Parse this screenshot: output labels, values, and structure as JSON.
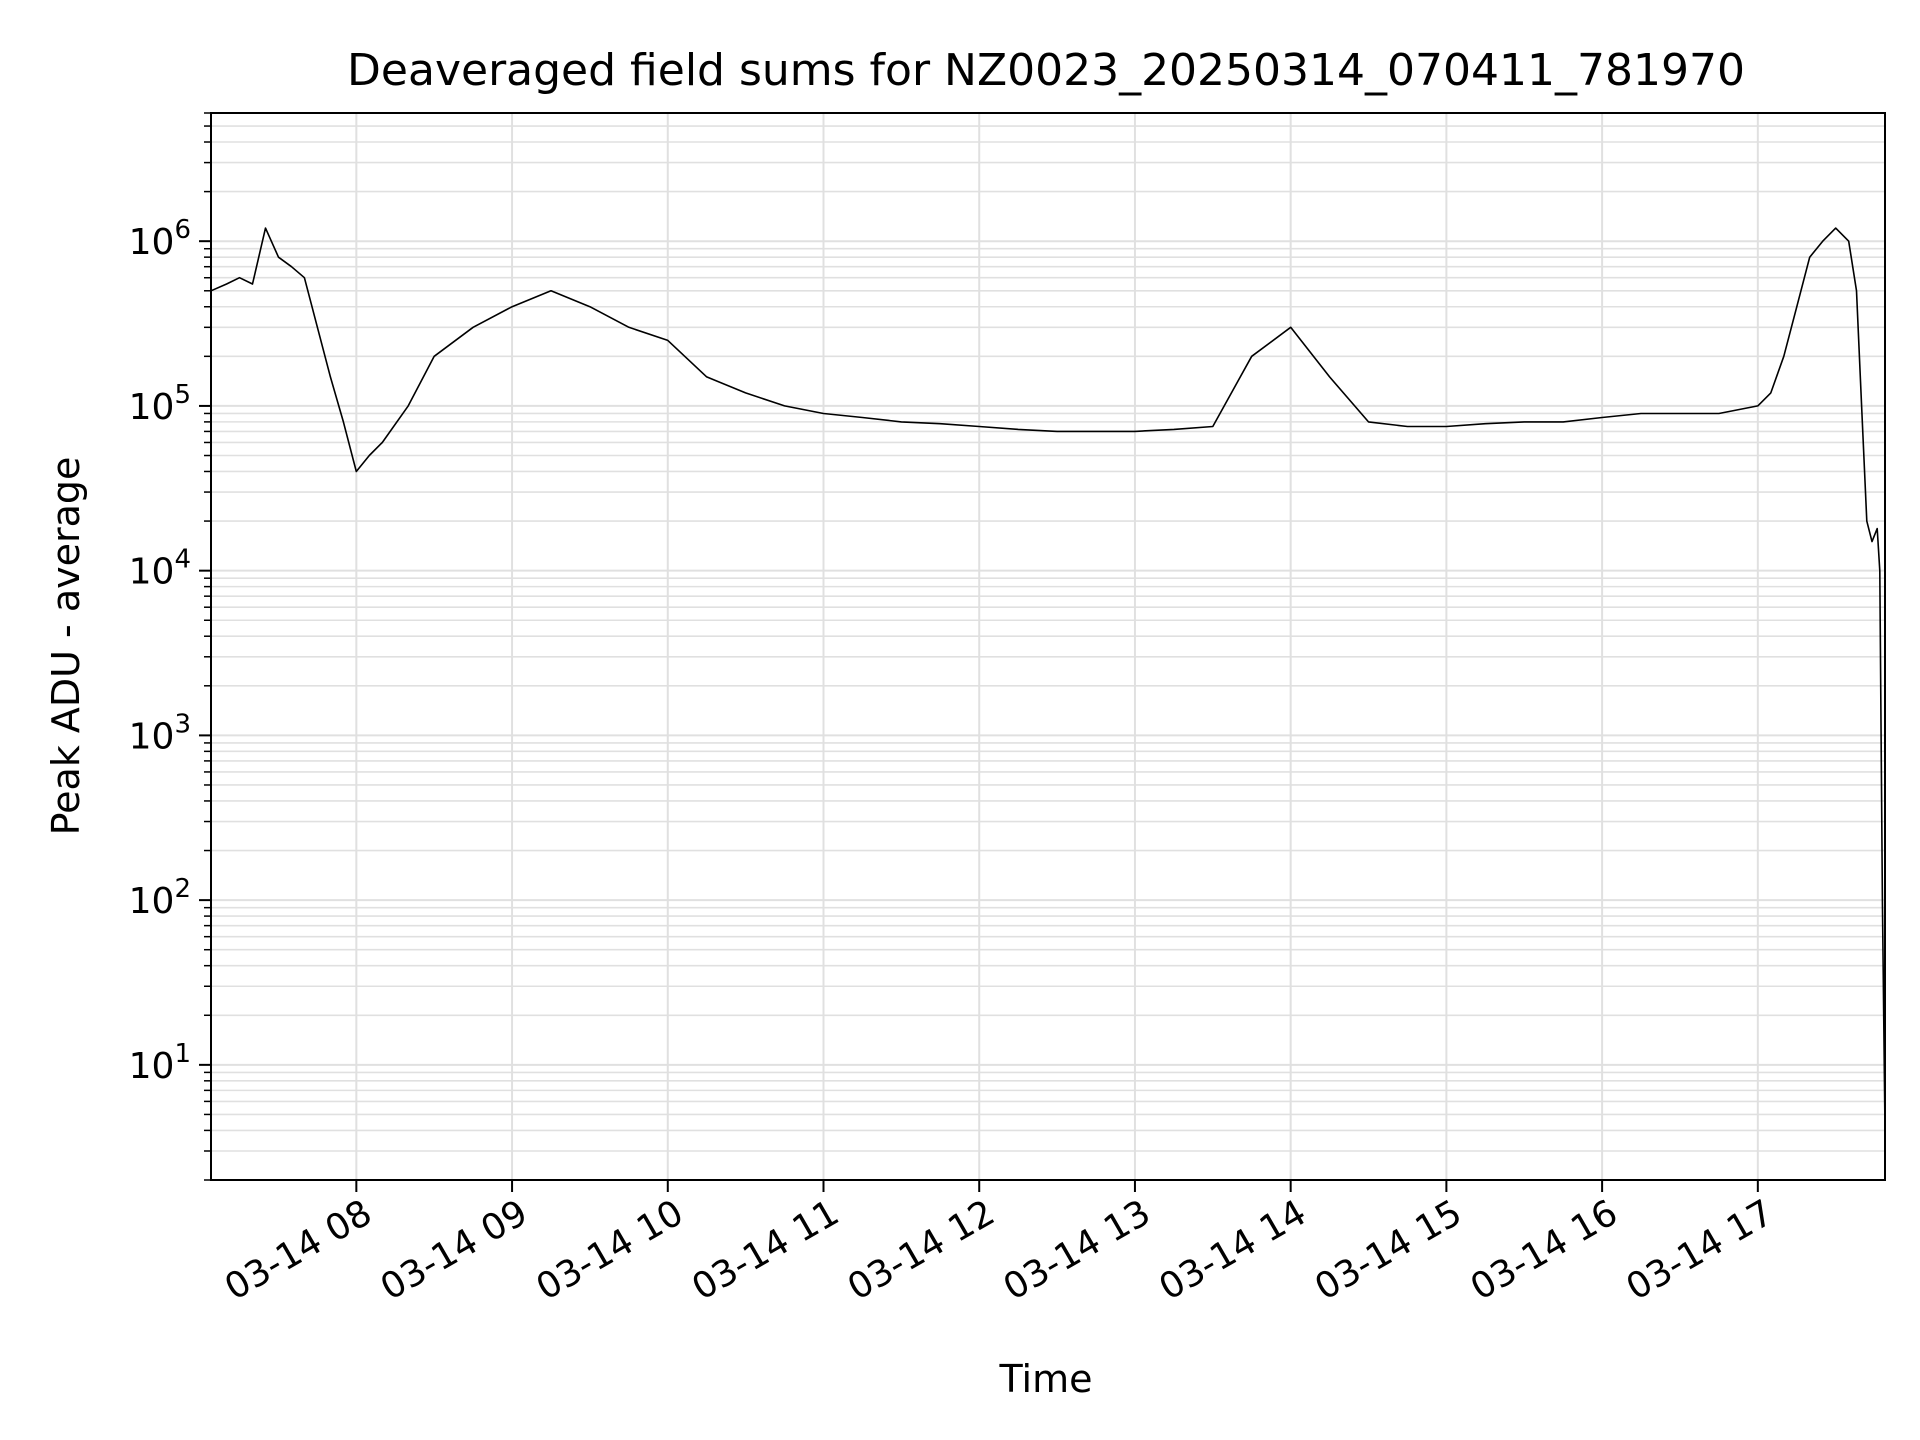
{
  "chart_data": {
    "type": "line",
    "title": "Deaveraged field sums for NZ0023_20250314_070411_781970",
    "xlabel": "Time",
    "ylabel": "Peak ADU - average",
    "yscale": "log",
    "grid": true,
    "grid_color": "#e0e0e0",
    "line_color": "#000000",
    "xlim": [
      "2025-03-14 07:04",
      "2025-03-14 17:49"
    ],
    "ylim": [
      2,
      6000000
    ],
    "x_ticks": [
      {
        "value": "2025-03-14 08:00",
        "label": "03-14 08"
      },
      {
        "value": "2025-03-14 09:00",
        "label": "03-14 09"
      },
      {
        "value": "2025-03-14 10:00",
        "label": "03-14 10"
      },
      {
        "value": "2025-03-14 11:00",
        "label": "03-14 11"
      },
      {
        "value": "2025-03-14 12:00",
        "label": "03-14 12"
      },
      {
        "value": "2025-03-14 13:00",
        "label": "03-14 13"
      },
      {
        "value": "2025-03-14 14:00",
        "label": "03-14 14"
      },
      {
        "value": "2025-03-14 15:00",
        "label": "03-14 15"
      },
      {
        "value": "2025-03-14 16:00",
        "label": "03-14 16"
      },
      {
        "value": "2025-03-14 17:00",
        "label": "03-14 17"
      }
    ],
    "y_ticks": [
      {
        "value": 10,
        "base": "10",
        "exp": "1"
      },
      {
        "value": 100,
        "base": "10",
        "exp": "2"
      },
      {
        "value": 1000,
        "base": "10",
        "exp": "3"
      },
      {
        "value": 10000,
        "base": "10",
        "exp": "4"
      },
      {
        "value": 100000,
        "base": "10",
        "exp": "5"
      },
      {
        "value": 1000000,
        "base": "10",
        "exp": "6"
      }
    ],
    "series": [
      {
        "x": [
          "2025-03-14 07:04",
          "2025-03-14 07:10",
          "2025-03-14 07:15",
          "2025-03-14 07:20",
          "2025-03-14 07:25",
          "2025-03-14 07:30",
          "2025-03-14 07:35",
          "2025-03-14 07:40",
          "2025-03-14 07:45",
          "2025-03-14 07:50",
          "2025-03-14 07:55",
          "2025-03-14 08:00",
          "2025-03-14 08:05",
          "2025-03-14 08:10",
          "2025-03-14 08:20",
          "2025-03-14 08:30",
          "2025-03-14 08:45",
          "2025-03-14 09:00",
          "2025-03-14 09:15",
          "2025-03-14 09:30",
          "2025-03-14 09:45",
          "2025-03-14 10:00",
          "2025-03-14 10:15",
          "2025-03-14 10:30",
          "2025-03-14 10:45",
          "2025-03-14 11:00",
          "2025-03-14 11:15",
          "2025-03-14 11:30",
          "2025-03-14 11:45",
          "2025-03-14 12:00",
          "2025-03-14 12:15",
          "2025-03-14 12:30",
          "2025-03-14 12:45",
          "2025-03-14 13:00",
          "2025-03-14 13:15",
          "2025-03-14 13:30",
          "2025-03-14 13:45",
          "2025-03-14 14:00",
          "2025-03-14 14:15",
          "2025-03-14 14:30",
          "2025-03-14 14:45",
          "2025-03-14 15:00",
          "2025-03-14 15:15",
          "2025-03-14 15:30",
          "2025-03-14 15:45",
          "2025-03-14 16:00",
          "2025-03-14 16:15",
          "2025-03-14 16:30",
          "2025-03-14 16:45",
          "2025-03-14 17:00",
          "2025-03-14 17:05",
          "2025-03-14 17:10",
          "2025-03-14 17:15",
          "2025-03-14 17:20",
          "2025-03-14 17:25",
          "2025-03-14 17:30",
          "2025-03-14 17:35",
          "2025-03-14 17:38",
          "2025-03-14 17:40",
          "2025-03-14 17:42",
          "2025-03-14 17:44",
          "2025-03-14 17:46",
          "2025-03-14 17:47",
          "2025-03-14 17:48",
          "2025-03-14 17:49"
        ],
        "y": [
          500000,
          550000,
          600000,
          550000,
          1200000,
          800000,
          700000,
          600000,
          300000,
          150000,
          80000,
          40000,
          50000,
          60000,
          100000,
          200000,
          300000,
          400000,
          500000,
          400000,
          300000,
          250000,
          150000,
          120000,
          100000,
          90000,
          85000,
          80000,
          78000,
          75000,
          72000,
          70000,
          70000,
          70000,
          72000,
          75000,
          200000,
          300000,
          150000,
          80000,
          75000,
          75000,
          78000,
          80000,
          80000,
          85000,
          90000,
          90000,
          90000,
          100000,
          120000,
          200000,
          400000,
          800000,
          1000000,
          1200000,
          1000000,
          500000,
          100000,
          20000,
          15000,
          18000,
          10000,
          100,
          4
        ]
      }
    ]
  }
}
